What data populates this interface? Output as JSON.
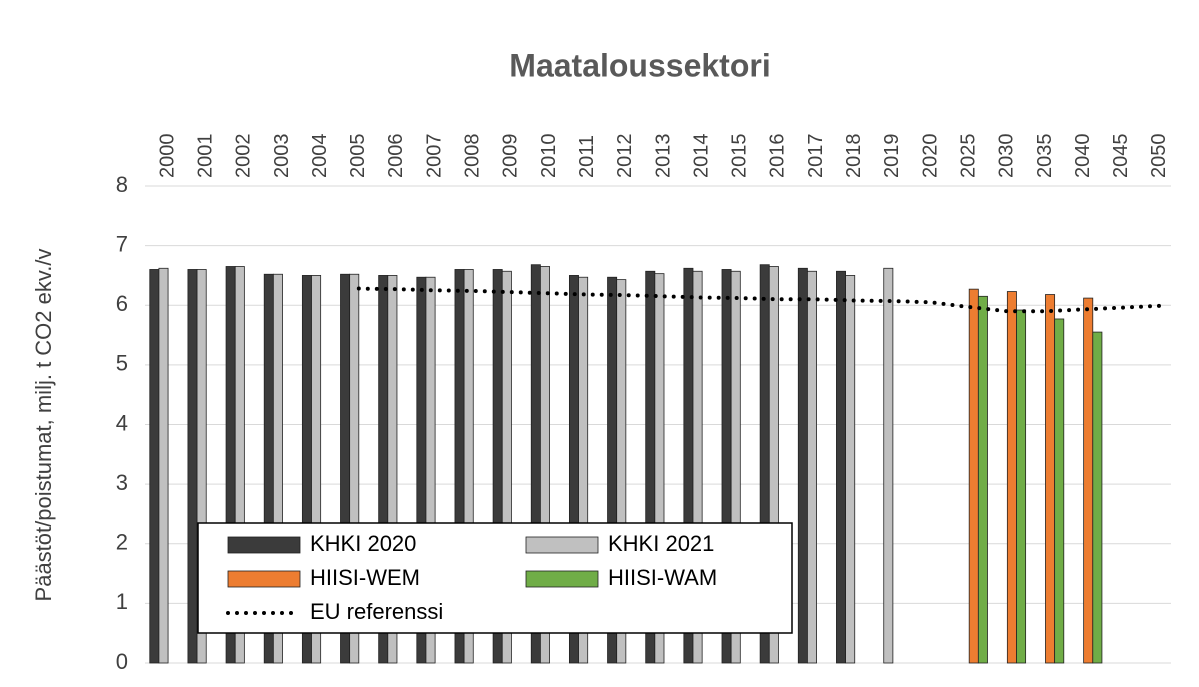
{
  "chart_data": {
    "type": "bar",
    "title": "Maataloussektori",
    "y_label": "Päästöt/poistumat, milj. t CO2 ekv./v",
    "categories": [
      "2000",
      "2001",
      "2002",
      "2003",
      "2004",
      "2005",
      "2006",
      "2007",
      "2008",
      "2009",
      "2010",
      "2011",
      "2012",
      "2013",
      "2014",
      "2015",
      "2016",
      "2017",
      "2018",
      "2019",
      "2020",
      "2025",
      "2030",
      "2035",
      "2040",
      "2045",
      "2050"
    ],
    "series": [
      {
        "name": "KHKI 2020",
        "color": "#3b3b3b",
        "values": [
          6.6,
          6.6,
          6.65,
          6.52,
          6.5,
          6.52,
          6.5,
          6.47,
          6.6,
          6.6,
          6.68,
          6.5,
          6.47,
          6.57,
          6.62,
          6.6,
          6.68,
          6.62,
          6.57,
          null,
          null,
          null,
          null,
          null,
          null,
          null,
          null
        ]
      },
      {
        "name": "KHKI 2021",
        "color": "#c0c0c0",
        "values": [
          6.62,
          6.6,
          6.65,
          6.52,
          6.5,
          6.52,
          6.5,
          6.47,
          6.6,
          6.57,
          6.65,
          6.47,
          6.43,
          6.53,
          6.57,
          6.57,
          6.65,
          6.57,
          6.5,
          6.62,
          null,
          null,
          null,
          null,
          null,
          null,
          null
        ]
      },
      {
        "name": "HIISI-WEM",
        "color": "#ed7d31",
        "values": [
          null,
          null,
          null,
          null,
          null,
          null,
          null,
          null,
          null,
          null,
          null,
          null,
          null,
          null,
          null,
          null,
          null,
          null,
          null,
          null,
          null,
          6.27,
          6.23,
          6.18,
          6.12,
          null,
          null
        ]
      },
      {
        "name": "HIISI-WAM",
        "color": "#70ad47",
        "values": [
          null,
          null,
          null,
          null,
          null,
          null,
          null,
          null,
          null,
          null,
          null,
          null,
          null,
          null,
          null,
          null,
          null,
          null,
          null,
          null,
          null,
          6.15,
          5.92,
          5.77,
          5.55,
          null,
          null
        ]
      },
      {
        "name": "EU referenssi",
        "color": "#000000",
        "type": "line",
        "values": [
          null,
          null,
          null,
          null,
          null,
          6.28,
          6.27,
          6.25,
          6.24,
          6.22,
          6.2,
          6.18,
          6.17,
          6.15,
          6.13,
          6.12,
          6.1,
          6.1,
          6.08,
          6.07,
          6.05,
          5.97,
          5.9,
          5.9,
          5.93,
          5.96,
          5.99
        ]
      }
    ],
    "ylim": [
      0,
      8
    ],
    "yticks": [
      0,
      1,
      2,
      3,
      4,
      5,
      6,
      7,
      8
    ],
    "grid": true,
    "legend": "lower left"
  }
}
